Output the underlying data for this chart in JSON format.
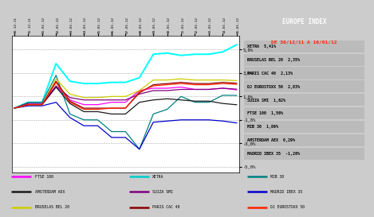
{
  "title": "EUROPE INDEX",
  "subtitle": "DE 30/12/11 A 16/01/12",
  "dates": [
    "30-12-11",
    "31-12-11",
    "01-01-12",
    "02-01-12",
    "03-01-12",
    "04-01-12",
    "05-01-12",
    "06-01-12",
    "07-01-12",
    "08-01-12",
    "09-01-12",
    "10-01-12",
    "11-01-12",
    "12-01-12",
    "13-01-12",
    "14-01-12",
    "16-01-12"
  ],
  "series": [
    {
      "name": "FTSE 100",
      "color": "#ff00ff",
      "values": [
        0.0,
        0.3,
        0.3,
        1.8,
        0.7,
        0.3,
        0.3,
        0.5,
        0.5,
        1.5,
        1.7,
        1.7,
        1.8,
        1.6,
        1.6,
        1.7,
        1.56
      ]
    },
    {
      "name": "XETRA",
      "color": "#00ffff",
      "values": [
        0.0,
        0.5,
        0.5,
        3.8,
        2.3,
        2.1,
        2.1,
        2.2,
        2.2,
        2.6,
        4.6,
        4.7,
        4.5,
        4.6,
        4.6,
        4.8,
        5.41
      ]
    },
    {
      "name": "MIB 30",
      "color": "#008080",
      "values": [
        0.0,
        0.5,
        0.5,
        2.8,
        -0.5,
        -1.0,
        -1.0,
        -2.0,
        -2.0,
        -3.5,
        -0.5,
        -0.1,
        1.0,
        0.5,
        0.5,
        1.1,
        1.09
      ]
    },
    {
      "name": "AMSTERDAM AEX",
      "color": "#1a1a1a",
      "values": [
        0.0,
        0.3,
        0.3,
        1.8,
        0.4,
        -0.3,
        -0.3,
        -0.5,
        -0.5,
        0.5,
        0.7,
        0.8,
        0.7,
        0.6,
        0.6,
        0.4,
        0.29
      ]
    },
    {
      "name": "SUIZA SMI",
      "color": "#800080",
      "values": [
        0.0,
        0.4,
        0.4,
        1.9,
        0.9,
        0.7,
        0.7,
        0.7,
        0.7,
        1.2,
        1.5,
        1.5,
        1.6,
        1.6,
        1.6,
        1.7,
        1.62
      ]
    },
    {
      "name": "MADRID IBEX 35",
      "color": "#0000cc",
      "values": [
        0.0,
        0.2,
        0.2,
        0.5,
        -0.8,
        -1.5,
        -1.5,
        -2.5,
        -2.5,
        -3.5,
        -1.2,
        -1.1,
        -1.0,
        -1.0,
        -1.0,
        -1.1,
        -1.26
      ]
    },
    {
      "name": "BRUSELAS BEL 20",
      "color": "#cccc00",
      "values": [
        0.0,
        0.3,
        0.3,
        2.5,
        1.2,
        0.9,
        0.9,
        1.0,
        1.0,
        1.5,
        2.4,
        2.4,
        2.5,
        2.4,
        2.4,
        2.4,
        2.35
      ]
    },
    {
      "name": "PARIS CAC 40",
      "color": "#8b0000",
      "values": [
        0.0,
        0.3,
        0.3,
        2.3,
        0.6,
        0.0,
        0.0,
        0.0,
        0.0,
        1.3,
        2.0,
        2.1,
        2.2,
        2.1,
        2.1,
        2.2,
        2.13
      ]
    },
    {
      "name": "DJ EUROSTOXX 50",
      "color": "#ff2200",
      "values": [
        0.0,
        0.3,
        0.3,
        2.2,
        0.5,
        -0.1,
        -0.1,
        0.0,
        0.0,
        1.4,
        1.9,
        2.0,
        2.1,
        2.0,
        2.0,
        2.1,
        2.03
      ]
    }
  ],
  "ytick_vals": [
    -5.0,
    -3.0,
    -1.0,
    1.0,
    3.0,
    5.0
  ],
  "ytick_labels": [
    "-5,0%",
    "-3,0%",
    "-1,0%",
    "1,0%",
    "3,0%",
    "5,0%"
  ],
  "ylim": [
    -5.5,
    6.2
  ],
  "sidebar_items": [
    {
      "label": "XETRA  5,41%"
    },
    {
      "label": "BRUSELAS BEL 20  2,35%"
    },
    {
      "label": "PARIS CAC 40  2,13%"
    },
    {
      "label": "DJ EUROSTOXX 50  2,03%"
    },
    {
      "label": "SUIZA SMI  1,62%"
    },
    {
      "label": "FTSE 100  1,56%"
    },
    {
      "label": "MIB 30  1,09%"
    },
    {
      "label": "AMSTERDAM AEX  0,29%"
    },
    {
      "label": "MADRID IBEX 35  -1,26%"
    }
  ],
  "legend_items": [
    {
      "label": "FTSE 100",
      "color": "#ff00ff"
    },
    {
      "label": "XETRA",
      "color": "#00cccc"
    },
    {
      "label": "MIB 30",
      "color": "#008080"
    },
    {
      "label": "AMSTERDAM AEX",
      "color": "#1a1a1a"
    },
    {
      "label": "SUIZA SMI",
      "color": "#800080"
    },
    {
      "label": "MADRID IBEX 35",
      "color": "#0000cc"
    },
    {
      "label": "BRUSELAS BEL 20",
      "color": "#cccc00"
    },
    {
      "label": "PARIS CAC 40",
      "color": "#8b0000"
    },
    {
      "label": "DJ EUROSTOXX 50",
      "color": "#ff2200"
    }
  ],
  "bg_color": "#cccccc",
  "plot_bg": "#ffffff",
  "header_bg": "#1a1a6e",
  "sidebar_bg": "#bbbbbb",
  "title_color": "#ffffff",
  "subtitle_color": "#ff2200",
  "grid_color": "#aaaaaa"
}
